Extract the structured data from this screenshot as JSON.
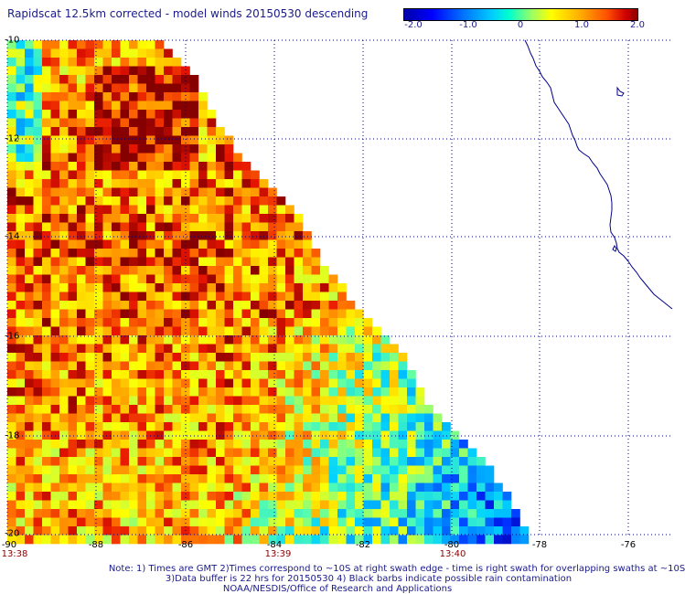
{
  "title": "Rapidscat 12.5km corrected - model winds 20150530 descending",
  "colorbar": {
    "labels": [
      "-2.0",
      "-1.0",
      "0",
      "1.0",
      "2.0"
    ],
    "range": [
      -2.0,
      2.0
    ]
  },
  "map": {
    "lon_range": [
      -90,
      -75.2
    ],
    "lat_range": [
      -20,
      -10
    ],
    "x_ticks": [
      "-90",
      "-88",
      "-86",
      "-84",
      "-82",
      "-80",
      "-78",
      "-76"
    ],
    "y_ticks": [
      "-10",
      "-12",
      "-14",
      "-16",
      "-18",
      "-20"
    ],
    "time_labels": [
      "13:38",
      "13:39",
      "13:40"
    ],
    "coast_color": "#00008b",
    "grid_color": "#000080"
  },
  "notes": {
    "line1": "Note: 1) Times are GMT 2)Times correspond to ~10S at right swath edge - time is right swath for overlapping swaths at ~10S",
    "line2": "3)Data buffer is 22 hrs for 20150530 4) Black barbs indicate possible rain contamination",
    "line3": "NOAA/NESDIS/Office of Research and Applications"
  }
}
